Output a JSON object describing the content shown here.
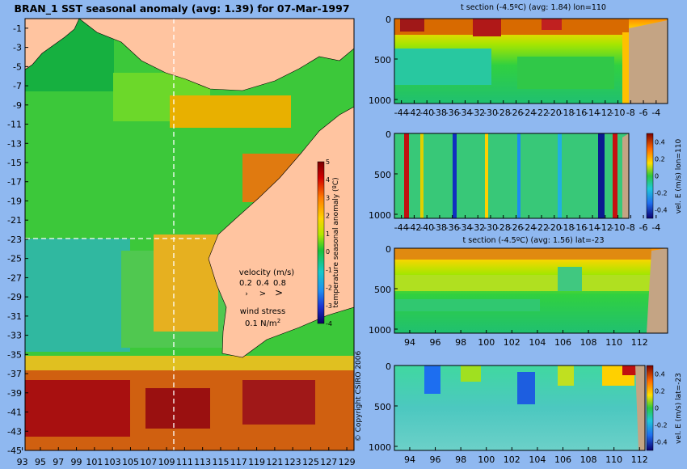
{
  "map": {
    "title": "BRAN_1  SST seasonal anomaly  (avg: 1.39) for 07-Mar-1997",
    "lat_ticks": [
      "-1",
      "-3",
      "-5",
      "-7",
      "-9",
      "-11",
      "-13",
      "-15",
      "-17",
      "-19",
      "-21",
      "-23",
      "-25",
      "-27",
      "-29",
      "-31",
      "-33",
      "-35",
      "-37",
      "-39",
      "-41",
      "-43",
      "-45"
    ],
    "lon_ticks": [
      "93",
      "95",
      "97",
      "99",
      "101",
      "103",
      "105",
      "107",
      "109",
      "111",
      "113",
      "115",
      "117",
      "119",
      "121",
      "123",
      "125",
      "127",
      "129"
    ],
    "velocity_label": "velocity (m/s)",
    "velocity_scale": [
      "0.2",
      "0.4",
      "0.8"
    ],
    "wind_label": "wind stress",
    "wind_value": "0.1 N/m",
    "wind_exp": "2",
    "colorbar_label": "temperature seasonal anomaly (ºC)",
    "colorbar_ticks": [
      "5",
      "4",
      "3",
      "2",
      "1",
      "0",
      "-1",
      "-2",
      "-3",
      "-4"
    ],
    "copyright": "© Copyright CSIRO 2006"
  },
  "panels": [
    {
      "title": "t section (-4.5ºC)  (avg: 1.84) lon=110",
      "y_ticks": [
        "0",
        "500",
        "1000"
      ],
      "x_ticks": [
        "-44",
        "-42",
        "-40",
        "-38",
        "-36",
        "-34",
        "-32",
        "-30",
        "-28",
        "-26",
        "-24",
        "-22",
        "-20",
        "-18",
        "-16",
        "-14",
        "-12",
        "-10",
        "-8",
        "-6",
        "-4"
      ]
    },
    {
      "title": "",
      "y_ticks": [
        "0",
        "500",
        "1000"
      ],
      "x_ticks": [
        "-44",
        "-42",
        "-40",
        "-38",
        "-36",
        "-34",
        "-32",
        "-30",
        "-28",
        "-26",
        "-24",
        "-22",
        "-20",
        "-18",
        "-16",
        "-14",
        "-12",
        "-10",
        "-8",
        "-6",
        "-4"
      ],
      "cbar_label": "vel. E (m/s) lon=110",
      "cbar_ticks": [
        "0.4",
        "0.2",
        "0",
        "-0.2",
        "-0.4"
      ]
    },
    {
      "title": "t section (-4.5ºC)  (avg: 1.56) lat=-23",
      "y_ticks": [
        "0",
        "500",
        "1000"
      ],
      "x_ticks": [
        "94",
        "96",
        "98",
        "100",
        "102",
        "104",
        "106",
        "108",
        "110",
        "112"
      ]
    },
    {
      "title": "",
      "y_ticks": [
        "0",
        "500",
        "1000"
      ],
      "x_ticks": [
        "94",
        "96",
        "98",
        "100",
        "102",
        "104",
        "106",
        "108",
        "110",
        "112"
      ],
      "cbar_label": "vel. E (m/s) lat=-23",
      "cbar_ticks": [
        "0.4",
        "0.2",
        "0",
        "-0.2",
        "-0.4"
      ]
    }
  ],
  "chart_data": [
    {
      "type": "heatmap",
      "title": "BRAN_1  SST seasonal anomaly  (avg: 1.39) for 07-Mar-1997",
      "xlim": [
        93,
        130
      ],
      "ylim": [
        -45,
        0
      ],
      "colorbar_range": [
        -4,
        5
      ],
      "units": "ºC"
    },
    {
      "type": "heatmap",
      "title": "t section (-4.5ºC)  (avg: 1.84) lon=110",
      "xlim": [
        -45,
        -2
      ],
      "ylim": [
        1050,
        0
      ]
    },
    {
      "type": "heatmap",
      "title": "",
      "xlim": [
        -45,
        -2
      ],
      "ylim": [
        1050,
        0
      ],
      "colorbar_range": [
        -0.5,
        0.5
      ]
    },
    {
      "type": "heatmap",
      "title": "t section (-4.5ºC)  (avg: 1.56) lat=-23",
      "xlim": [
        93,
        114
      ],
      "ylim": [
        1050,
        0
      ]
    },
    {
      "type": "heatmap",
      "title": "",
      "xlim": [
        93,
        114
      ],
      "ylim": [
        1050,
        0
      ],
      "colorbar_range": [
        -0.5,
        0.5
      ]
    }
  ]
}
